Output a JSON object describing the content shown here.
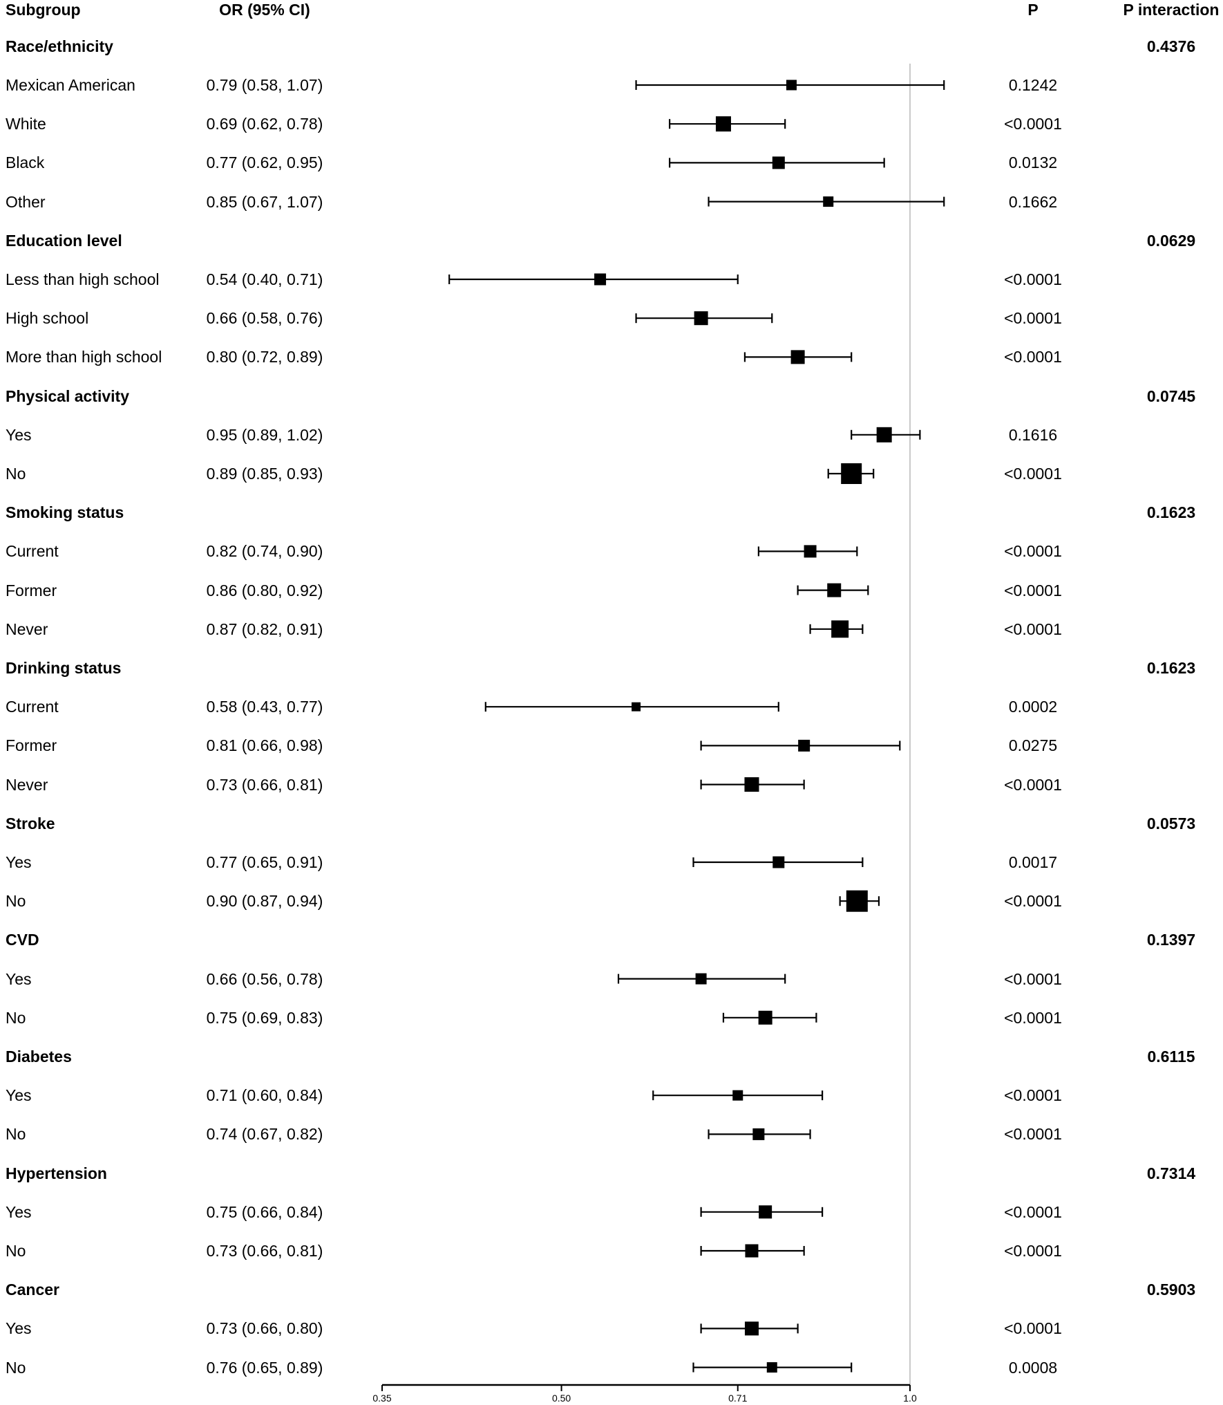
{
  "header": {
    "subgroup": "Subgroup",
    "or_ci": "OR (95% CI)",
    "p": "P",
    "p_interaction": "P interaction"
  },
  "colors": {
    "text": "#000000",
    "marker": "#000000",
    "ci_line": "#000000",
    "reference_line": "#c9c9c9",
    "axis_line": "#000000"
  },
  "chart_data": {
    "type": "forest",
    "scale": "log",
    "xlim": [
      0.35,
      1.0
    ],
    "reference_value": 1.0,
    "axis_ticks": [
      0.35,
      0.5,
      0.71,
      1.0
    ],
    "axis_tick_labels": [
      "0.35",
      "0.50",
      "0.71",
      "1.0"
    ],
    "rows": [
      {
        "kind": "group",
        "label": "Race/ethnicity",
        "p_interaction": "0.4376"
      },
      {
        "kind": "item",
        "label": "Mexican American",
        "or_ci": "0.79 (0.58, 1.07)",
        "or": 0.79,
        "lo": 0.58,
        "hi": 1.07,
        "p": "0.1242",
        "weight": 15
      },
      {
        "kind": "item",
        "label": "White",
        "or_ci": "0.69 (0.62, 0.78)",
        "or": 0.69,
        "lo": 0.62,
        "hi": 0.78,
        "p": "<0.0001",
        "weight": 22
      },
      {
        "kind": "item",
        "label": "Black",
        "or_ci": "0.77 (0.62, 0.95)",
        "or": 0.77,
        "lo": 0.62,
        "hi": 0.95,
        "p": "0.0132",
        "weight": 18
      },
      {
        "kind": "item",
        "label": "Other",
        "or_ci": "0.85 (0.67, 1.07)",
        "or": 0.85,
        "lo": 0.67,
        "hi": 1.07,
        "p": "0.1662",
        "weight": 15
      },
      {
        "kind": "group",
        "label": "Education level",
        "p_interaction": "0.0629"
      },
      {
        "kind": "item",
        "label": "Less than high school",
        "or_ci": "0.54 (0.40, 0.71)",
        "or": 0.54,
        "lo": 0.4,
        "hi": 0.71,
        "p": "<0.0001",
        "weight": 17
      },
      {
        "kind": "item",
        "label": "High school",
        "or_ci": "0.66 (0.58, 0.76)",
        "or": 0.66,
        "lo": 0.58,
        "hi": 0.76,
        "p": "<0.0001",
        "weight": 20
      },
      {
        "kind": "item",
        "label": "More than high school",
        "or_ci": "0.80 (0.72, 0.89)",
        "or": 0.8,
        "lo": 0.72,
        "hi": 0.89,
        "p": "<0.0001",
        "weight": 20
      },
      {
        "kind": "group",
        "label": "Physical activity",
        "p_interaction": "0.0745"
      },
      {
        "kind": "item",
        "label": "Yes",
        "or_ci": "0.95 (0.89, 1.02)",
        "or": 0.95,
        "lo": 0.89,
        "hi": 1.02,
        "p": "0.1616",
        "weight": 22
      },
      {
        "kind": "item",
        "label": "No",
        "or_ci": "0.89 (0.85, 0.93)",
        "or": 0.89,
        "lo": 0.85,
        "hi": 0.93,
        "p": "<0.0001",
        "weight": 30
      },
      {
        "kind": "group",
        "label": "Smoking status",
        "p_interaction": "0.1623"
      },
      {
        "kind": "item",
        "label": "Current",
        "or_ci": "0.82 (0.74, 0.90)",
        "or": 0.82,
        "lo": 0.74,
        "hi": 0.9,
        "p": "<0.0001",
        "weight": 18
      },
      {
        "kind": "item",
        "label": "Former",
        "or_ci": "0.86 (0.80, 0.92)",
        "or": 0.86,
        "lo": 0.8,
        "hi": 0.92,
        "p": "<0.0001",
        "weight": 20
      },
      {
        "kind": "item",
        "label": "Never",
        "or_ci": "0.87 (0.82, 0.91)",
        "or": 0.87,
        "lo": 0.82,
        "hi": 0.91,
        "p": "<0.0001",
        "weight": 25
      },
      {
        "kind": "group",
        "label": "Drinking status",
        "p_interaction": "0.1623"
      },
      {
        "kind": "item",
        "label": "Current",
        "or_ci": "0.58 (0.43, 0.77)",
        "or": 0.58,
        "lo": 0.43,
        "hi": 0.77,
        "p": "0.0002",
        "weight": 13
      },
      {
        "kind": "item",
        "label": "Former",
        "or_ci": "0.81 (0.66, 0.98)",
        "or": 0.81,
        "lo": 0.66,
        "hi": 0.98,
        "p": "0.0275",
        "weight": 17
      },
      {
        "kind": "item",
        "label": "Never",
        "or_ci": "0.73 (0.66, 0.81)",
        "or": 0.73,
        "lo": 0.66,
        "hi": 0.81,
        "p": "<0.0001",
        "weight": 21
      },
      {
        "kind": "group",
        "label": "Stroke",
        "p_interaction": "0.0573"
      },
      {
        "kind": "item",
        "label": "Yes",
        "or_ci": "0.77 (0.65, 0.91)",
        "or": 0.77,
        "lo": 0.65,
        "hi": 0.91,
        "p": "0.0017",
        "weight": 17
      },
      {
        "kind": "item",
        "label": "No",
        "or_ci": "0.90 (0.87, 0.94)",
        "or": 0.9,
        "lo": 0.87,
        "hi": 0.94,
        "p": "<0.0001",
        "weight": 31
      },
      {
        "kind": "group",
        "label": "CVD",
        "p_interaction": "0.1397"
      },
      {
        "kind": "item",
        "label": "Yes",
        "or_ci": "0.66 (0.56, 0.78)",
        "or": 0.66,
        "lo": 0.56,
        "hi": 0.78,
        "p": "<0.0001",
        "weight": 16
      },
      {
        "kind": "item",
        "label": "No",
        "or_ci": "0.75 (0.69, 0.83)",
        "or": 0.75,
        "lo": 0.69,
        "hi": 0.83,
        "p": "<0.0001",
        "weight": 20
      },
      {
        "kind": "group",
        "label": "Diabetes",
        "p_interaction": "0.6115"
      },
      {
        "kind": "item",
        "label": "Yes",
        "or_ci": "0.71 (0.60, 0.84)",
        "or": 0.71,
        "lo": 0.6,
        "hi": 0.84,
        "p": "<0.0001",
        "weight": 15
      },
      {
        "kind": "item",
        "label": "No",
        "or_ci": "0.74 (0.67, 0.82)",
        "or": 0.74,
        "lo": 0.67,
        "hi": 0.82,
        "p": "<0.0001",
        "weight": 17
      },
      {
        "kind": "group",
        "label": "Hypertension",
        "p_interaction": "0.7314"
      },
      {
        "kind": "item",
        "label": "Yes",
        "or_ci": "0.75 (0.66, 0.84)",
        "or": 0.75,
        "lo": 0.66,
        "hi": 0.84,
        "p": "<0.0001",
        "weight": 19
      },
      {
        "kind": "item",
        "label": "No",
        "or_ci": "0.73 (0.66, 0.81)",
        "or": 0.73,
        "lo": 0.66,
        "hi": 0.81,
        "p": "<0.0001",
        "weight": 19
      },
      {
        "kind": "group",
        "label": "Cancer",
        "p_interaction": "0.5903"
      },
      {
        "kind": "item",
        "label": "Yes",
        "or_ci": "0.73 (0.66, 0.80)",
        "or": 0.73,
        "lo": 0.66,
        "hi": 0.8,
        "p": "<0.0001",
        "weight": 20
      },
      {
        "kind": "item",
        "label": "No",
        "or_ci": "0.76 (0.65, 0.89)",
        "or": 0.76,
        "lo": 0.65,
        "hi": 0.89,
        "p": "0.0008",
        "weight": 15
      }
    ]
  }
}
